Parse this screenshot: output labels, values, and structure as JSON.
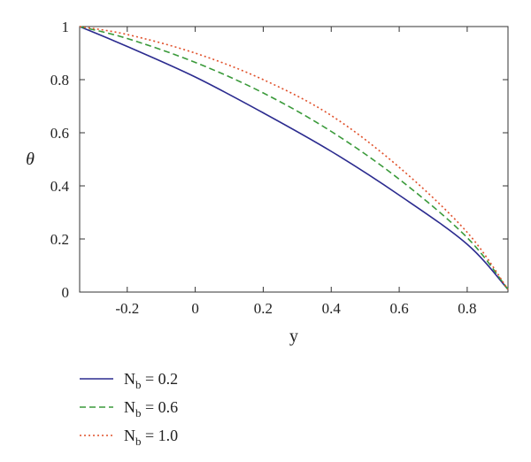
{
  "chart_data": {
    "type": "line",
    "xlabel": "y",
    "ylabel": "θ",
    "xlim": [
      -0.34,
      0.92
    ],
    "ylim": [
      0,
      1
    ],
    "xticks": [
      -0.2,
      0,
      0.2,
      0.4,
      0.6,
      0.8
    ],
    "xtick_labels": [
      "-0.2",
      "0",
      "0.2",
      "0.4",
      "0.6",
      "0.8"
    ],
    "yticks": [
      0,
      0.2,
      0.4,
      0.6,
      0.8,
      1
    ],
    "ytick_labels": [
      "0",
      "0.2",
      "0.4",
      "0.6",
      "0.8",
      "1"
    ],
    "grid": false,
    "legend_position": "below-left",
    "x": [
      -0.34,
      -0.2,
      0.0,
      0.2,
      0.4,
      0.6,
      0.8,
      0.92
    ],
    "series": [
      {
        "name_main": "N",
        "name_sub": "b",
        "name_value": " = 0.2",
        "color": "#2b2b8f",
        "dash": "solid",
        "values": [
          1.0,
          0.925,
          0.81,
          0.675,
          0.53,
          0.365,
          0.18,
          0.01
        ]
      },
      {
        "name_main": "N",
        "name_sub": "b",
        "name_value": " = 0.6",
        "color": "#3a9a3a",
        "dash": "dashed",
        "values": [
          1.0,
          0.955,
          0.865,
          0.75,
          0.605,
          0.425,
          0.205,
          0.01
        ]
      },
      {
        "name_main": "N",
        "name_sub": "b",
        "name_value": " = 1.0",
        "color": "#e0502a",
        "dash": "dotted",
        "values": [
          1.0,
          0.97,
          0.9,
          0.8,
          0.665,
          0.47,
          0.225,
          0.01
        ]
      }
    ]
  }
}
